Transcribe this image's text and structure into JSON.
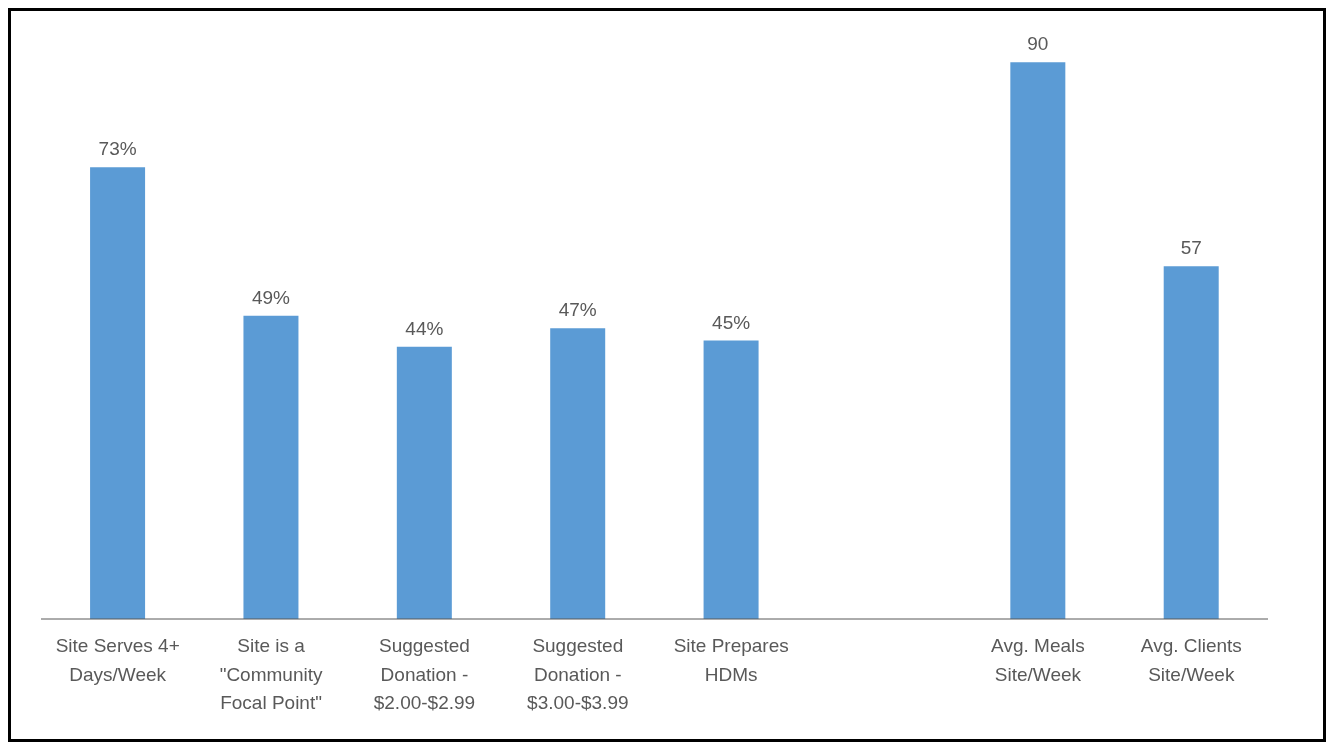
{
  "chart_data": {
    "type": "bar",
    "categories": [
      "Site Serves 4+ Days/Week",
      "Site is a \"Community Focal Point\"",
      "Suggested Donation - $2.00-$2.99",
      "Suggested Donation - $3.00-$3.99",
      "Site Prepares HDMs",
      null,
      "Avg. Meals Site/Week",
      "Avg. Clients Site/Week"
    ],
    "values": [
      73,
      49,
      44,
      47,
      45,
      null,
      90,
      57
    ],
    "value_labels": [
      "73%",
      "49%",
      "44%",
      "47%",
      "45%",
      null,
      "90",
      "57"
    ],
    "color": "#5b9bd5"
  }
}
